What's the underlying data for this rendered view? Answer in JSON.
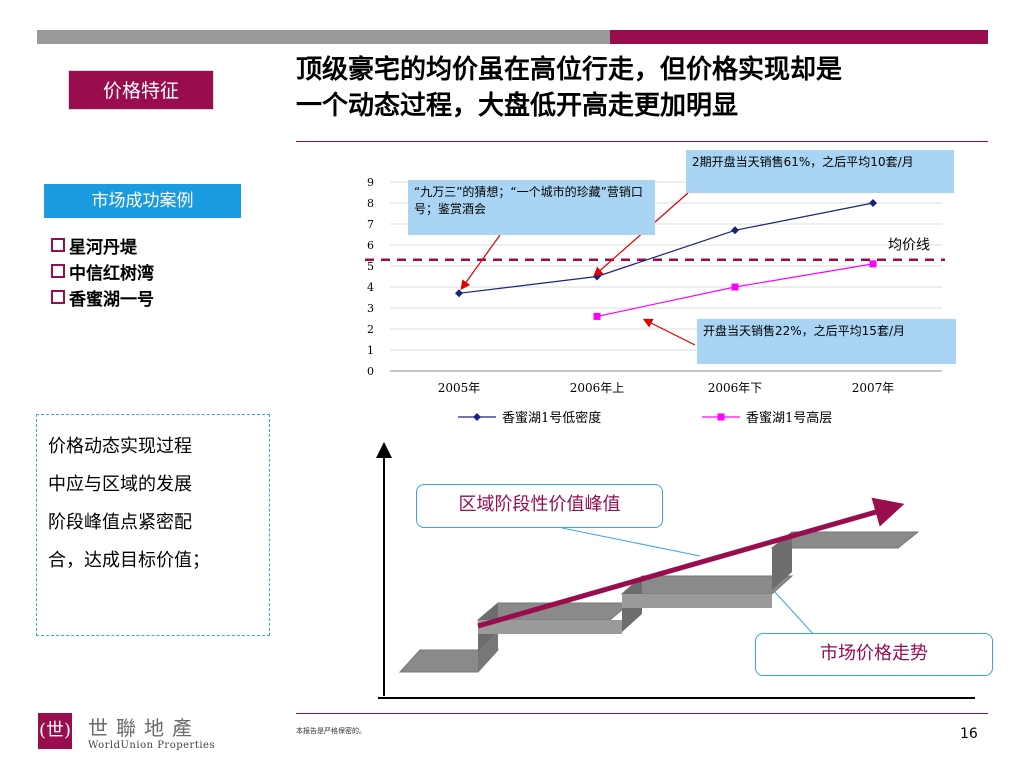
{
  "slide": {
    "section_tag": "价格特征",
    "title_line1": "顶级豪宅的均价虽在高位行走，但价格实现却是",
    "title_line2": "一个动态过程，大盘低开高走更加明显",
    "page_number": "16",
    "footer_note": "本报告是严格保密的。"
  },
  "cases": {
    "header": "市场成功案例",
    "items": [
      "星河丹堤",
      "中信红树湾",
      "香蜜湖一号"
    ]
  },
  "note": {
    "text_line1": "价格动态实现过程",
    "text_line2": "中应与区域的发展",
    "text_line3": "阶段峰值点紧密配",
    "text_line4": "合，达成目标价值；"
  },
  "callouts": {
    "c1": "“九万三”的猜想；“一个城市的珍藏”营销口号；鉴赏酒会",
    "c2": "2期开盘当天销售61%，之后平均10套/月",
    "c3": "开盘当天销售22%，之后平均15套/月"
  },
  "chart_data": {
    "type": "line",
    "categories": [
      "2005年",
      "2006年上",
      "2006年下",
      "2007年"
    ],
    "ylim": [
      0,
      9
    ],
    "yticks": [
      "0",
      "1",
      "2",
      "3",
      "4",
      "5",
      "6",
      "7",
      "8",
      "9"
    ],
    "grid": true,
    "legend_position": "bottom",
    "series": [
      {
        "name": "香蜜湖1号低密度",
        "values": [
          3.7,
          4.5,
          6.7,
          8.0
        ],
        "color": "#1a237e",
        "marker": "diamond"
      },
      {
        "name": "香蜜湖1号高层",
        "values": [
          null,
          2.6,
          4.0,
          5.1
        ],
        "color": "#ff00ff",
        "marker": "square"
      }
    ],
    "reference_line": {
      "label": "均价线",
      "value": 5.3,
      "color": "#990d4e",
      "style": "dashed"
    }
  },
  "diagram": {
    "peak_label_prefix": "区域",
    "peak_label_rest": "阶段性价值峰值",
    "price_label": "市场价格走势"
  },
  "logo": {
    "mark": "(世)",
    "name_cn": "世聯地產",
    "name_en": "WorldUnion Properties"
  },
  "colors": {
    "brand": "#990d4e",
    "accent_blue": "#1a9be0",
    "callout_bg": "#a9d4f3"
  }
}
